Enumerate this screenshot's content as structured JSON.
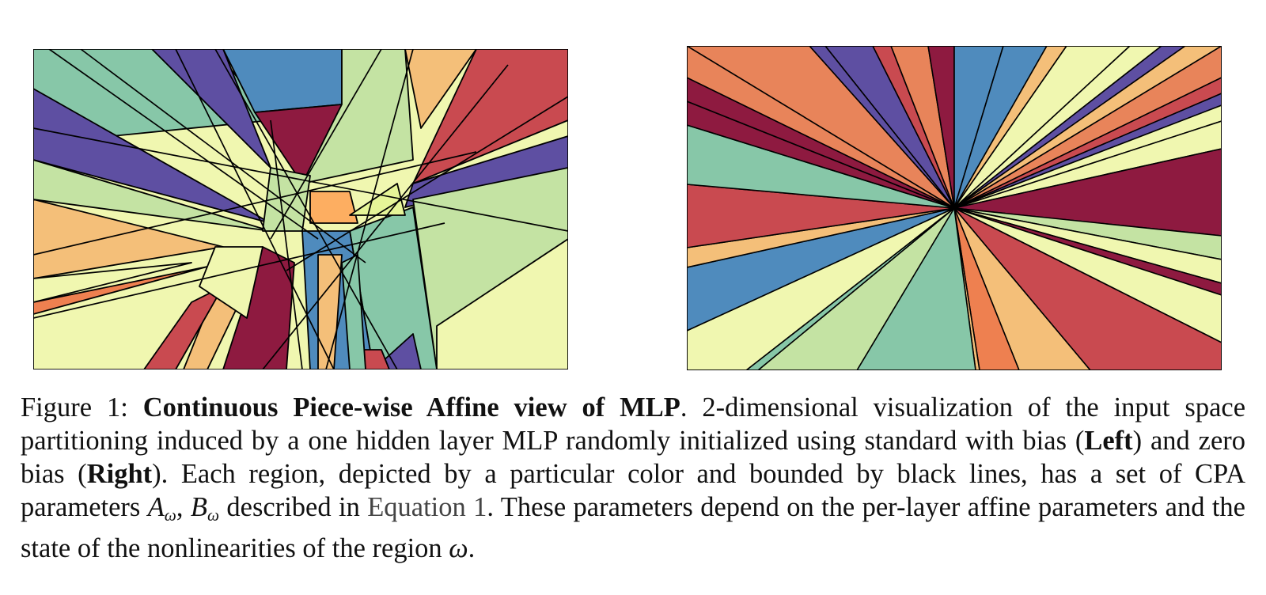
{
  "figure": {
    "left_panel_name": "Left",
    "right_panel_name": "Right",
    "palette": [
      "#9e0142",
      "#d53e4f",
      "#f46d43",
      "#fdae61",
      "#fee08b",
      "#ffffbf",
      "#e6f598",
      "#abdda4",
      "#66c2a5",
      "#3288bd",
      "#5e4fa2"
    ],
    "caption": {
      "label": "Figure 1:",
      "title": "Continuous Piece-wise Affine view of MLP",
      "t1": ". 2-dimensional visualization of the input space partitioning induced by a one hidden layer MLP randomly initialized using standard with bias (",
      "left": "Left",
      "t2": ") and zero bias (",
      "right": "Right",
      "t3": "). Each region, depicted by a particular color and bounded by black lines, has a set of CPA parameters ",
      "math_A": "A",
      "sub_A": "ω",
      "comma": ", ",
      "math_B": "B",
      "sub_B": "ω",
      "t4": " described in ",
      "eq_ref": "Equation 1",
      "t5": ". These parameters depend on the per-layer affine parameters and the state of the nonlinearities of the region ",
      "omega": "ω",
      "t6": "."
    }
  }
}
